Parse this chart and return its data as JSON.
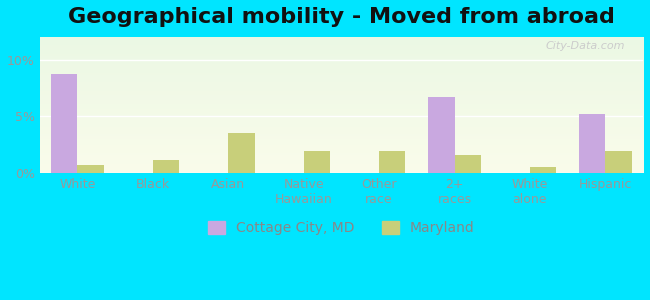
{
  "title": "Geographical mobility - Moved from abroad",
  "categories": [
    "White",
    "Black",
    "Asian",
    "Native\nHawaiian",
    "Other\nrace",
    "2+\nraces",
    "White\nalone",
    "Hispanic"
  ],
  "cottage_city": [
    8.7,
    0.0,
    0.0,
    0.0,
    0.0,
    6.7,
    0.0,
    5.2
  ],
  "maryland": [
    0.7,
    1.1,
    3.5,
    1.9,
    1.9,
    1.6,
    0.5,
    1.9
  ],
  "cottage_city_color": "#c9a8e0",
  "maryland_color": "#c8cf7a",
  "background_outer": "#00e5ff",
  "ylim_max": 12,
  "yticks": [
    0,
    5,
    10
  ],
  "ytick_labels": [
    "0%",
    "5%",
    "10%"
  ],
  "bar_width": 0.35,
  "legend_label_city": "Cottage City, MD",
  "legend_label_state": "Maryland",
  "title_fontsize": 16,
  "tick_fontsize": 9,
  "legend_fontsize": 10,
  "watermark": "City-Data.com"
}
